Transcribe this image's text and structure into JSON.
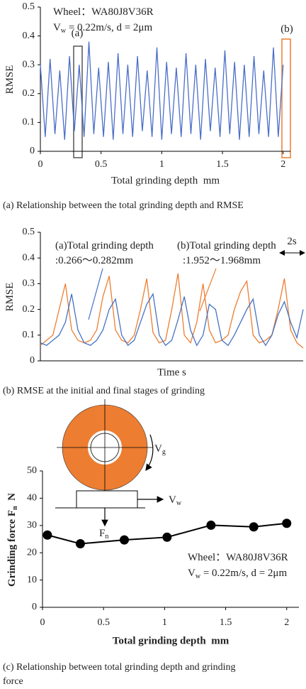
{
  "chart_data": [
    {
      "type": "line",
      "xlabel": "Total grinding depth  mm",
      "ylabel": [
        {
          "text": "RMSE"
        }
      ],
      "caption": [
        "(a) Relationship between the total grinding depth and RMSE"
      ],
      "xlim": [
        0,
        2.06
      ],
      "ylim": [
        0,
        0.5
      ],
      "xticks": [
        0,
        0.5,
        1,
        1.5,
        2
      ],
      "yticks": [
        0,
        0.1,
        0.2,
        0.3,
        0.4,
        0.5
      ],
      "x": [
        0,
        0.04,
        0.08,
        0.12,
        0.16,
        0.2,
        0.24,
        0.28,
        0.32,
        0.36,
        0.4,
        0.44,
        0.48,
        0.52,
        0.56,
        0.6,
        0.64,
        0.68,
        0.72,
        0.76,
        0.8,
        0.84,
        0.88,
        0.92,
        0.96,
        1,
        1.04,
        1.08,
        1.12,
        1.16,
        1.2,
        1.24,
        1.28,
        1.32,
        1.36,
        1.4,
        1.44,
        1.48,
        1.52,
        1.56,
        1.6,
        1.64,
        1.68,
        1.72,
        1.76,
        1.8,
        1.84,
        1.88,
        1.92,
        1.96,
        2
      ],
      "series": [
        {
          "color": "#4a6ec8",
          "values": [
            0.3,
            0.05,
            0.32,
            0.06,
            0.28,
            0.04,
            0.33,
            0.07,
            0.3,
            0.05,
            0.38,
            0.06,
            0.29,
            0.05,
            0.31,
            0.04,
            0.34,
            0.06,
            0.3,
            0.05,
            0.33,
            0.07,
            0.28,
            0.05,
            0.36,
            0.04,
            0.31,
            0.06,
            0.29,
            0.05,
            0.34,
            0.06,
            0.3,
            0.04,
            0.32,
            0.07,
            0.29,
            0.05,
            0.35,
            0.06,
            0.31,
            0.04,
            0.3,
            0.05,
            0.33,
            0.06,
            0.28,
            0.05,
            0.36,
            0.05,
            0.3
          ]
        }
      ],
      "annotations": [
        {
          "text": "Wheel：WA80J8V36R"
        },
        {
          "text": "V",
          "sub": "w",
          "after": " = 0.22m/s, d = 2μm"
        },
        {
          "text": "(a)"
        },
        {
          "text": "(b)"
        }
      ]
    },
    {
      "type": "line",
      "xlabel": "Time s",
      "ylabel": [
        {
          "text": "RMSE"
        }
      ],
      "caption": [
        "(b) RMSE at the initial and final stages of grinding"
      ],
      "xlim": [
        0,
        21
      ],
      "ylim": [
        0,
        0.5
      ],
      "yticks": [
        0,
        0.1,
        0.2,
        0.3,
        0.4,
        0.5
      ],
      "x": [
        0,
        0.5,
        1,
        1.5,
        2,
        2.5,
        3,
        3.5,
        4,
        4.5,
        5,
        5.5,
        6,
        6.5,
        7,
        7.5,
        8,
        8.5,
        9,
        9.5,
        10,
        10.5,
        11,
        11.5,
        12,
        12.5,
        13,
        13.5,
        14,
        14.5,
        15,
        15.5,
        16,
        16.5,
        17,
        17.5,
        18,
        18.5,
        19,
        19.5,
        20,
        20.5,
        21
      ],
      "series": [
        {
          "color": "#ed7d31",
          "values": [
            0.06,
            0.08,
            0.1,
            0.2,
            0.3,
            0.12,
            0.08,
            0.07,
            0.08,
            0.12,
            0.25,
            0.33,
            0.12,
            0.08,
            0.07,
            0.1,
            0.2,
            0.32,
            0.11,
            0.07,
            0.08,
            0.2,
            0.34,
            0.1,
            0.07,
            0.15,
            0.3,
            0.12,
            0.07,
            0.08,
            0.1,
            0.2,
            0.27,
            0.31,
            0.1,
            0.07,
            0.08,
            0.1,
            0.2,
            0.32,
            0.12,
            0.07,
            0.05
          ]
        },
        {
          "color": "#4472c4",
          "values": [
            0.07,
            0.06,
            0.08,
            0.1,
            0.15,
            0.26,
            0.12,
            0.07,
            0.06,
            0.08,
            0.12,
            0.2,
            0.24,
            0.1,
            0.06,
            0.08,
            0.15,
            0.22,
            0.26,
            0.1,
            0.06,
            0.08,
            0.16,
            0.25,
            0.12,
            0.06,
            0.1,
            0.22,
            0.2,
            0.08,
            0.06,
            0.1,
            0.15,
            0.2,
            0.24,
            0.1,
            0.06,
            0.1,
            0.18,
            0.23,
            0.15,
            0.09,
            0.2
          ]
        }
      ],
      "annotations": [
        {
          "text": "(a)Total grinding depth"
        },
        {
          "text": ":0.266～0.282mm"
        },
        {
          "text": "(b)Total grinding depth"
        },
        {
          "text": ":1.952～1.968mm"
        },
        {
          "text": "2s"
        }
      ]
    },
    {
      "type": "line",
      "markers": true,
      "xlabel": "Total grinding depth  mm",
      "ylabel": [
        {
          "text": "Grinding force F",
          "sub": "n",
          "after": "  N"
        }
      ],
      "caption": [
        "(c) Relationship between total grinding depth and grinding",
        "force"
      ],
      "xlim": [
        0,
        2.1
      ],
      "ylim": [
        0,
        50
      ],
      "xticks": [
        0,
        0.5,
        1,
        1.5,
        2
      ],
      "yticks": [
        0,
        10,
        20,
        30,
        40,
        50
      ],
      "x": [
        0.04,
        0.31,
        0.67,
        1.02,
        1.38,
        1.73,
        2.0
      ],
      "series": [
        {
          "color": "#000000",
          "values": [
            26.5,
            23.3,
            24.7,
            25.7,
            30.1,
            29.5,
            30.8
          ]
        }
      ],
      "annotations": [
        {
          "text": "Wheel：WA80J8V36R"
        },
        {
          "text": "V",
          "sub": "w",
          "after": " = 0.22m/s, d = 2μm"
        },
        {
          "text": "V",
          "sub": "g"
        },
        {
          "text": "V",
          "sub": "w"
        },
        {
          "text": "F",
          "sub": "n"
        }
      ]
    }
  ]
}
